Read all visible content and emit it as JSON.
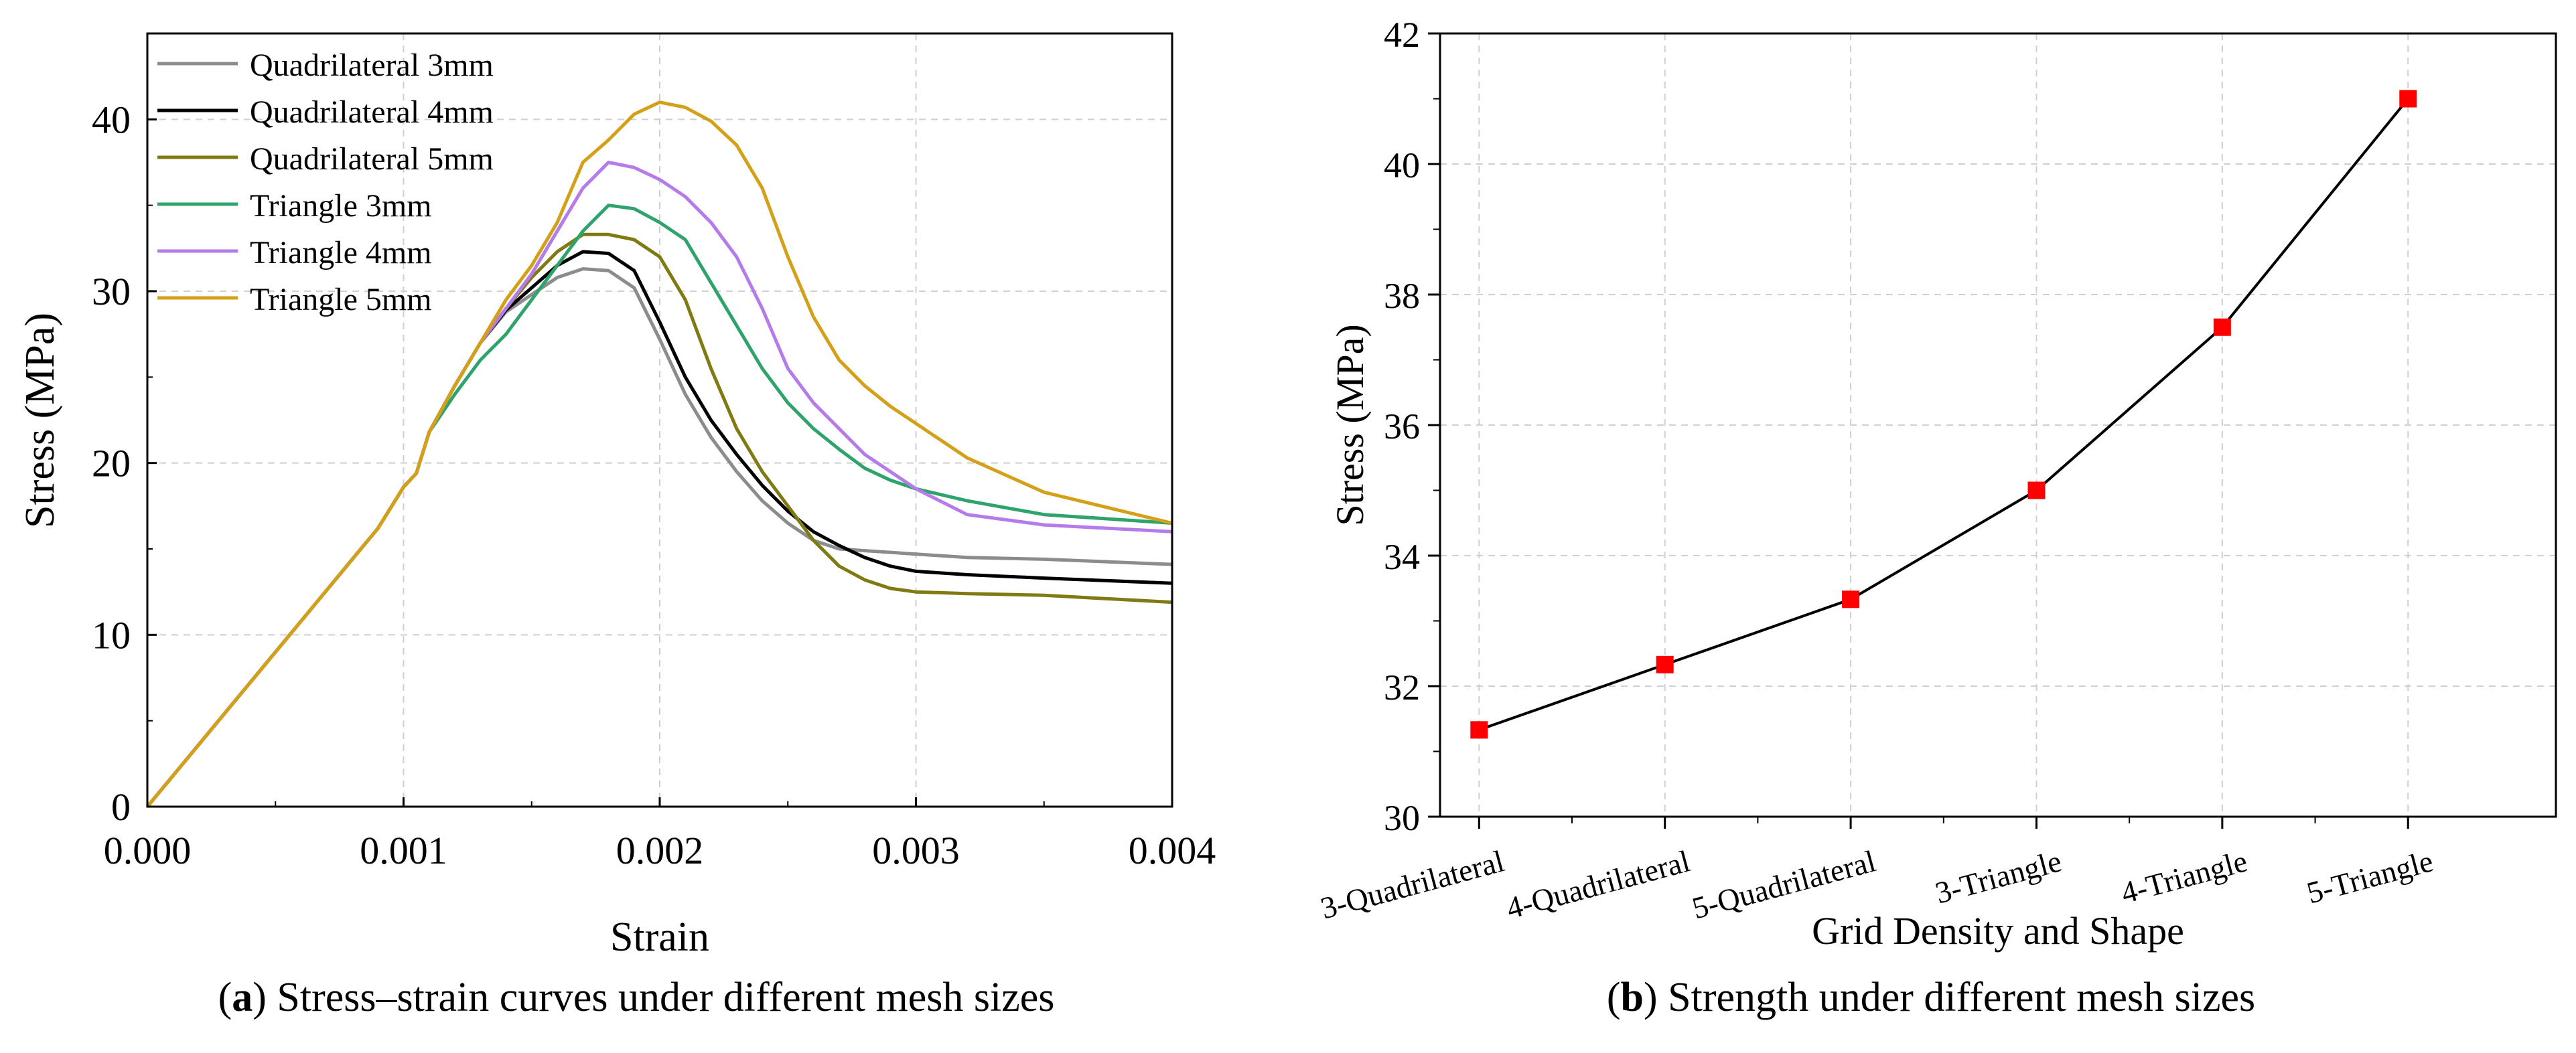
{
  "chart_data": [
    {
      "type": "line",
      "caption_letter": "a",
      "caption_text": "Stress–strain curves under different mesh sizes",
      "xlabel": "Strain",
      "ylabel": "Stress (MPa)",
      "xlim": [
        0,
        0.004
      ],
      "ylim": [
        0,
        45
      ],
      "xticks": [
        "0.000",
        "0.001",
        "0.002",
        "0.003",
        "0.004"
      ],
      "xtick_values": [
        0,
        0.001,
        0.002,
        0.003,
        0.004
      ],
      "yticks": [
        "0",
        "10",
        "20",
        "30",
        "40"
      ],
      "ytick_values": [
        0,
        10,
        20,
        30,
        40
      ],
      "grid": true,
      "legend_position": "top-left",
      "series": [
        {
          "name": "Quadrilateral 3mm",
          "color": "#8c8c8c",
          "points": [
            [
              0,
              0
            ],
            [
              0.0002,
              3.6
            ],
            [
              0.0005,
              9
            ],
            [
              0.0008,
              14.4
            ],
            [
              0.0009,
              16.2
            ],
            [
              0.00095,
              17.4
            ],
            [
              0.001,
              18.6
            ],
            [
              0.00105,
              19.4
            ],
            [
              0.0011,
              21.8
            ],
            [
              0.0012,
              24.5
            ],
            [
              0.0013,
              27
            ],
            [
              0.0014,
              28.8
            ],
            [
              0.0015,
              29.8
            ],
            [
              0.0016,
              30.8
            ],
            [
              0.0017,
              31.3
            ],
            [
              0.0018,
              31.2
            ],
            [
              0.0019,
              30.2
            ],
            [
              0.002,
              27.2
            ],
            [
              0.0021,
              24
            ],
            [
              0.0022,
              21.5
            ],
            [
              0.0023,
              19.5
            ],
            [
              0.0024,
              17.8
            ],
            [
              0.0025,
              16.5
            ],
            [
              0.0026,
              15.5
            ],
            [
              0.0027,
              15
            ],
            [
              0.0028,
              14.9
            ],
            [
              0.0029,
              14.8
            ],
            [
              0.003,
              14.7
            ],
            [
              0.0032,
              14.5
            ],
            [
              0.0035,
              14.4
            ],
            [
              0.004,
              14.1
            ]
          ]
        },
        {
          "name": "Quadrilateral 4mm",
          "color": "#000000",
          "points": [
            [
              0,
              0
            ],
            [
              0.0002,
              3.6
            ],
            [
              0.0005,
              9
            ],
            [
              0.0008,
              14.4
            ],
            [
              0.0009,
              16.2
            ],
            [
              0.00095,
              17.4
            ],
            [
              0.001,
              18.6
            ],
            [
              0.00105,
              19.4
            ],
            [
              0.0011,
              21.8
            ],
            [
              0.0012,
              24.5
            ],
            [
              0.0013,
              27
            ],
            [
              0.0014,
              28.9
            ],
            [
              0.0015,
              30.2
            ],
            [
              0.0016,
              31.5
            ],
            [
              0.0017,
              32.3
            ],
            [
              0.0018,
              32.2
            ],
            [
              0.0019,
              31.2
            ],
            [
              0.002,
              28.2
            ],
            [
              0.0021,
              25
            ],
            [
              0.0022,
              22.5
            ],
            [
              0.0023,
              20.5
            ],
            [
              0.0024,
              18.7
            ],
            [
              0.0025,
              17.2
            ],
            [
              0.0026,
              16
            ],
            [
              0.0027,
              15.2
            ],
            [
              0.0028,
              14.5
            ],
            [
              0.0029,
              14
            ],
            [
              0.003,
              13.7
            ],
            [
              0.0032,
              13.5
            ],
            [
              0.0035,
              13.3
            ],
            [
              0.004,
              13
            ]
          ]
        },
        {
          "name": "Quadrilateral 5mm",
          "color": "#7f7a12",
          "points": [
            [
              0,
              0
            ],
            [
              0.0002,
              3.6
            ],
            [
              0.0005,
              9
            ],
            [
              0.0008,
              14.4
            ],
            [
              0.0009,
              16.2
            ],
            [
              0.00095,
              17.4
            ],
            [
              0.001,
              18.6
            ],
            [
              0.00105,
              19.4
            ],
            [
              0.0011,
              21.8
            ],
            [
              0.0012,
              24.5
            ],
            [
              0.0013,
              27
            ],
            [
              0.0014,
              29
            ],
            [
              0.0015,
              30.8
            ],
            [
              0.0016,
              32.3
            ],
            [
              0.0017,
              33.3
            ],
            [
              0.0018,
              33.3
            ],
            [
              0.0019,
              33
            ],
            [
              0.002,
              32
            ],
            [
              0.0021,
              29.5
            ],
            [
              0.0022,
              25.5
            ],
            [
              0.0023,
              22
            ],
            [
              0.0024,
              19.5
            ],
            [
              0.0025,
              17.5
            ],
            [
              0.0026,
              15.5
            ],
            [
              0.0027,
              14
            ],
            [
              0.0028,
              13.2
            ],
            [
              0.0029,
              12.7
            ],
            [
              0.003,
              12.5
            ],
            [
              0.0032,
              12.4
            ],
            [
              0.0035,
              12.3
            ],
            [
              0.004,
              11.9
            ]
          ]
        },
        {
          "name": "Triangle 3mm",
          "color": "#2ea36b",
          "points": [
            [
              0,
              0
            ],
            [
              0.0002,
              3.6
            ],
            [
              0.0005,
              9
            ],
            [
              0.0008,
              14.4
            ],
            [
              0.0009,
              16.2
            ],
            [
              0.00095,
              17.4
            ],
            [
              0.001,
              18.6
            ],
            [
              0.00105,
              19.4
            ],
            [
              0.0011,
              21.8
            ],
            [
              0.0012,
              24
            ],
            [
              0.0013,
              26
            ],
            [
              0.0014,
              27.5
            ],
            [
              0.0015,
              29.5
            ],
            [
              0.0016,
              31.5
            ],
            [
              0.0017,
              33.5
            ],
            [
              0.0018,
              35
            ],
            [
              0.0019,
              34.8
            ],
            [
              0.002,
              34
            ],
            [
              0.0021,
              33
            ],
            [
              0.0022,
              30.5
            ],
            [
              0.0023,
              28
            ],
            [
              0.0024,
              25.5
            ],
            [
              0.0025,
              23.5
            ],
            [
              0.0026,
              22
            ],
            [
              0.0027,
              20.8
            ],
            [
              0.0028,
              19.7
            ],
            [
              0.0029,
              19
            ],
            [
              0.003,
              18.5
            ],
            [
              0.0032,
              17.8
            ],
            [
              0.0035,
              17
            ],
            [
              0.004,
              16.5
            ]
          ]
        },
        {
          "name": "Triangle 4mm",
          "color": "#b57bea",
          "points": [
            [
              0,
              0
            ],
            [
              0.0002,
              3.6
            ],
            [
              0.0005,
              9
            ],
            [
              0.0008,
              14.4
            ],
            [
              0.0009,
              16.2
            ],
            [
              0.00095,
              17.4
            ],
            [
              0.001,
              18.6
            ],
            [
              0.00105,
              19.4
            ],
            [
              0.0011,
              21.8
            ],
            [
              0.0012,
              24.5
            ],
            [
              0.0013,
              27
            ],
            [
              0.0014,
              29
            ],
            [
              0.0015,
              31
            ],
            [
              0.0016,
              33.5
            ],
            [
              0.0017,
              36
            ],
            [
              0.0018,
              37.5
            ],
            [
              0.0019,
              37.2
            ],
            [
              0.002,
              36.5
            ],
            [
              0.0021,
              35.5
            ],
            [
              0.0022,
              34
            ],
            [
              0.0023,
              32
            ],
            [
              0.0024,
              29
            ],
            [
              0.0025,
              25.5
            ],
            [
              0.0026,
              23.5
            ],
            [
              0.0027,
              22
            ],
            [
              0.0028,
              20.5
            ],
            [
              0.0029,
              19.5
            ],
            [
              0.003,
              18.5
            ],
            [
              0.0032,
              17
            ],
            [
              0.0035,
              16.4
            ],
            [
              0.004,
              16
            ]
          ]
        },
        {
          "name": "Triangle 5mm",
          "color": "#d4a017",
          "points": [
            [
              0,
              0
            ],
            [
              0.0002,
              3.6
            ],
            [
              0.0005,
              9
            ],
            [
              0.0008,
              14.4
            ],
            [
              0.0009,
              16.2
            ],
            [
              0.00095,
              17.4
            ],
            [
              0.001,
              18.6
            ],
            [
              0.00105,
              19.4
            ],
            [
              0.0011,
              21.8
            ],
            [
              0.0012,
              24.5
            ],
            [
              0.0013,
              27
            ],
            [
              0.0014,
              29.5
            ],
            [
              0.0015,
              31.5
            ],
            [
              0.0016,
              34
            ],
            [
              0.0017,
              37.5
            ],
            [
              0.0018,
              38.8
            ],
            [
              0.0019,
              40.3
            ],
            [
              0.002,
              41
            ],
            [
              0.0021,
              40.7
            ],
            [
              0.0022,
              39.9
            ],
            [
              0.0023,
              38.5
            ],
            [
              0.0024,
              36
            ],
            [
              0.0025,
              32
            ],
            [
              0.0026,
              28.5
            ],
            [
              0.0027,
              26
            ],
            [
              0.0028,
              24.5
            ],
            [
              0.0029,
              23.3
            ],
            [
              0.003,
              22.3
            ],
            [
              0.0032,
              20.3
            ],
            [
              0.0035,
              18.3
            ],
            [
              0.004,
              16.5
            ]
          ]
        }
      ]
    },
    {
      "type": "line",
      "caption_letter": "b",
      "caption_text": "Strength under different mesh sizes",
      "xlabel": "Grid Density and Shape",
      "ylabel": "Stress (MPa)",
      "categories": [
        "3-Quadrilateral",
        "4-Quadrilateral",
        "5-Quadrilateral",
        "3-Triangle",
        "4-Triangle",
        "5-Triangle"
      ],
      "values": [
        31.33,
        32.33,
        33.33,
        35,
        37.5,
        41
      ],
      "ylim": [
        30,
        42
      ],
      "yticks": [
        "30",
        "32",
        "34",
        "36",
        "38",
        "40",
        "42"
      ],
      "ytick_values": [
        30,
        32,
        34,
        36,
        38,
        40,
        42
      ],
      "grid": true,
      "line_color": "#000000",
      "marker_color": "#ff0000",
      "marker": "square"
    }
  ]
}
